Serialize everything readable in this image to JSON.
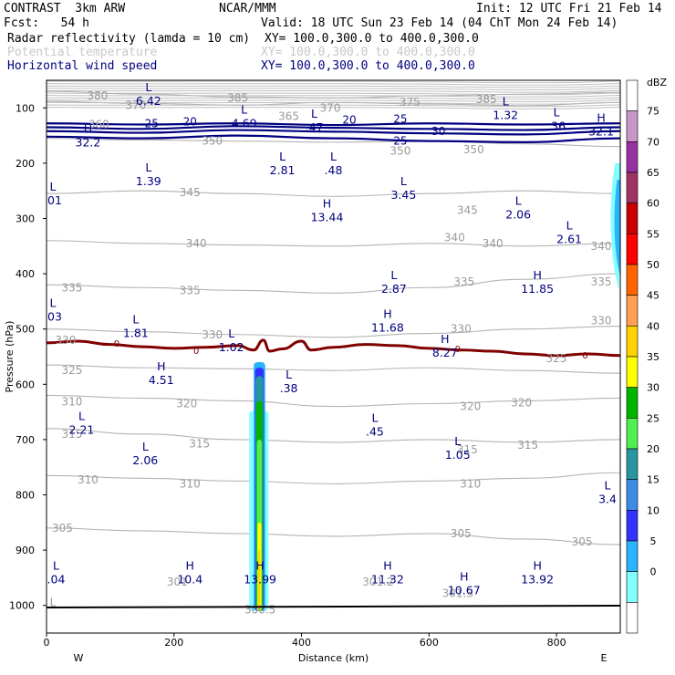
{
  "header": {
    "model": "CONTRAST  3km ARW",
    "center": "NCAR/MMM",
    "init": "Init: 12 UTC Fri 21 Feb 14",
    "fcst": "Fcst:   54 h",
    "valid": "Valid: 18 UTC Sun 23 Feb 14 (04 ChT Mon 24 Feb 14)",
    "field1": "Radar reflectivity (lamda = 10 cm)",
    "field1_xy": "XY= 100.0,300.0 to 400.0,300.0",
    "field2": "Potential temperature",
    "field2_xy": "XY= 100.0,300.0 to 400.0,300.0",
    "field3": "Horizontal wind speed",
    "field3_xy": "XY= 100.0,300.0 to 400.0,300.0"
  },
  "colors": {
    "wind_contour": "#000080",
    "theta_contour": "#b4b4b4",
    "zero_line": "#800000",
    "ground": "#000000"
  },
  "chart_data": {
    "type": "cross-section",
    "xlabel": "Distance (km)",
    "ylabel": "Pressure (hPa)",
    "xlim": [
      0,
      900
    ],
    "ylim": [
      1050,
      50
    ],
    "x_ticks": [
      0,
      200,
      400,
      600,
      800
    ],
    "y_ticks": [
      100,
      200,
      300,
      400,
      500,
      600,
      700,
      800,
      900,
      1000
    ],
    "x_end_labels": {
      "left": "W",
      "right": "E"
    },
    "colorbar": {
      "unit": "dBZ",
      "levels": [
        "75",
        "70",
        "65",
        "60",
        "55",
        "50",
        "45",
        "40",
        "35",
        "30",
        "25",
        "20",
        "15",
        "10",
        "5",
        "0"
      ],
      "colors": [
        "#ffffff",
        "#c896c8",
        "#9632a0",
        "#a03264",
        "#c80000",
        "#ff0000",
        "#ff6400",
        "#ffa050",
        "#ffd200",
        "#ffff00",
        "#00b400",
        "#50f050",
        "#2896a0",
        "#3c8ce6",
        "#3232ff",
        "#28b4ff",
        "#82ffff",
        "#ffffff"
      ]
    },
    "theta_contours": [
      {
        "value": "380",
        "p": [
          70,
          75,
          80,
          82,
          78,
          75,
          72
        ],
        "x": [
          0,
          150,
          300,
          450,
          600,
          750,
          900
        ]
      },
      {
        "value": "370",
        "p": [
          88,
          92,
          95,
          90,
          93,
          96,
          90
        ],
        "x": [
          0,
          150,
          300,
          450,
          600,
          750,
          900
        ]
      },
      {
        "value": "350",
        "p": [
          155,
          158,
          160,
          162,
          160,
          165,
          170
        ],
        "x": [
          0,
          150,
          300,
          450,
          600,
          750,
          900
        ]
      },
      {
        "value": "345",
        "p": [
          255,
          250,
          255,
          260,
          255,
          250,
          255
        ],
        "x": [
          0,
          150,
          300,
          450,
          600,
          750,
          900
        ]
      },
      {
        "value": "340",
        "p": [
          340,
          345,
          348,
          350,
          345,
          350,
          345
        ],
        "x": [
          0,
          150,
          300,
          450,
          600,
          750,
          900
        ]
      },
      {
        "value": "335",
        "p": [
          420,
          425,
          430,
          435,
          425,
          410,
          400
        ],
        "x": [
          0,
          150,
          300,
          450,
          600,
          750,
          900
        ]
      },
      {
        "value": "330",
        "p": [
          500,
          505,
          510,
          515,
          508,
          500,
          495
        ],
        "x": [
          0,
          150,
          300,
          450,
          600,
          750,
          900
        ]
      },
      {
        "value": "325",
        "p": [
          565,
          570,
          572,
          575,
          570,
          575,
          580
        ],
        "x": [
          0,
          150,
          300,
          450,
          600,
          750,
          900
        ]
      },
      {
        "value": "320",
        "p": [
          620,
          625,
          630,
          640,
          635,
          630,
          625
        ],
        "x": [
          0,
          150,
          300,
          450,
          600,
          750,
          900
        ]
      },
      {
        "value": "315",
        "p": [
          680,
          690,
          700,
          705,
          700,
          705,
          700
        ],
        "x": [
          0,
          150,
          300,
          450,
          600,
          750,
          900
        ]
      },
      {
        "value": "310",
        "p": [
          765,
          770,
          775,
          780,
          775,
          770,
          760
        ],
        "x": [
          0,
          150,
          300,
          450,
          600,
          750,
          900
        ]
      },
      {
        "value": "305",
        "p": [
          860,
          865,
          870,
          875,
          870,
          880,
          890
        ],
        "x": [
          0,
          150,
          300,
          450,
          600,
          750,
          900
        ]
      }
    ],
    "theta_labels": [
      {
        "text": "380",
        "x": 80,
        "p": 78
      },
      {
        "text": "370",
        "x": 140,
        "p": 95
      },
      {
        "text": "385",
        "x": 300,
        "p": 82
      },
      {
        "text": "365",
        "x": 380,
        "p": 115
      },
      {
        "text": "370",
        "x": 445,
        "p": 100
      },
      {
        "text": "375",
        "x": 570,
        "p": 90
      },
      {
        "text": "385",
        "x": 690,
        "p": 85
      },
      {
        "text": "360",
        "x": 82,
        "p": 130
      },
      {
        "text": "350",
        "x": 260,
        "p": 160
      },
      {
        "text": "350",
        "x": 555,
        "p": 178
      },
      {
        "text": "350",
        "x": 670,
        "p": 175
      },
      {
        "text": "345",
        "x": 225,
        "p": 253
      },
      {
        "text": "345",
        "x": 660,
        "p": 285
      },
      {
        "text": "340",
        "x": 235,
        "p": 345
      },
      {
        "text": "340",
        "x": 640,
        "p": 335
      },
      {
        "text": "340",
        "x": 700,
        "p": 345
      },
      {
        "text": "340",
        "x": 870,
        "p": 350
      },
      {
        "text": "335",
        "x": 40,
        "p": 425
      },
      {
        "text": "335",
        "x": 225,
        "p": 430
      },
      {
        "text": "335",
        "x": 655,
        "p": 415
      },
      {
        "text": "335",
        "x": 870,
        "p": 415
      },
      {
        "text": "330",
        "x": 260,
        "p": 510
      },
      {
        "text": "330",
        "x": 650,
        "p": 500
      },
      {
        "text": "330",
        "x": 870,
        "p": 485
      },
      {
        "text": "330",
        "x": 30,
        "p": 520
      },
      {
        "text": "325",
        "x": 40,
        "p": 575
      },
      {
        "text": "325",
        "x": 800,
        "p": 553
      },
      {
        "text": "320",
        "x": 220,
        "p": 635
      },
      {
        "text": "320",
        "x": 665,
        "p": 640
      },
      {
        "text": "320",
        "x": 745,
        "p": 633
      },
      {
        "text": "310",
        "x": 40,
        "p": 632
      },
      {
        "text": "315",
        "x": 40,
        "p": 690
      },
      {
        "text": "315",
        "x": 240,
        "p": 708
      },
      {
        "text": "315",
        "x": 660,
        "p": 718
      },
      {
        "text": "315",
        "x": 755,
        "p": 710
      },
      {
        "text": "310",
        "x": 65,
        "p": 773
      },
      {
        "text": "310",
        "x": 225,
        "p": 780
      },
      {
        "text": "310",
        "x": 665,
        "p": 780
      },
      {
        "text": "305",
        "x": 25,
        "p": 860
      },
      {
        "text": "305",
        "x": 650,
        "p": 870
      },
      {
        "text": "305",
        "x": 840,
        "p": 885
      },
      {
        "text": "301",
        "x": 205,
        "p": 958
      },
      {
        "text": "301.2",
        "x": 520,
        "p": 958
      },
      {
        "text": "301.3",
        "x": 645,
        "p": 978
      },
      {
        "text": "300.5",
        "x": 335,
        "p": 1008
      },
      {
        "text": "L",
        "x": 10,
        "p": 995
      }
    ],
    "wind_contours": [
      {
        "value": "20",
        "p": [
          128,
          130,
          128,
          131,
          128,
          130,
          128
        ],
        "x": [
          0,
          150,
          300,
          450,
          600,
          750,
          900
        ]
      },
      {
        "value": "25",
        "p": [
          135,
          138,
          133,
          136,
          138,
          140,
          135
        ],
        "x": [
          0,
          150,
          300,
          450,
          600,
          750,
          900
        ]
      },
      {
        "value": "30",
        "p": [
          142,
          145,
          140,
          143,
          146,
          148,
          142
        ],
        "x": [
          0,
          150,
          300,
          450,
          600,
          750,
          900
        ]
      },
      {
        "value": "25",
        "p": [
          152,
          155,
          150,
          155,
          160,
          162,
          155
        ],
        "x": [
          0,
          150,
          300,
          450,
          600,
          750,
          900
        ]
      }
    ],
    "wind_labels": [
      {
        "text": "25",
        "x": 165,
        "p": 128
      },
      {
        "text": "20",
        "x": 225,
        "p": 125
      },
      {
        "text": "20",
        "x": 475,
        "p": 122
      },
      {
        "text": "25",
        "x": 555,
        "p": 120
      },
      {
        "text": "30",
        "x": 615,
        "p": 142
      },
      {
        "text": "25",
        "x": 555,
        "p": 160
      }
    ],
    "zero_line": {
      "value": "0",
      "x": [
        0,
        50,
        100,
        150,
        200,
        250,
        300,
        325,
        340,
        350,
        370,
        400,
        415,
        450,
        500,
        550,
        600,
        650,
        700,
        750,
        800,
        850,
        900
      ],
      "p": [
        525,
        522,
        528,
        532,
        535,
        533,
        530,
        538,
        520,
        540,
        536,
        522,
        538,
        533,
        528,
        530,
        535,
        538,
        540,
        545,
        548,
        545,
        548
      ],
      "labels": [
        {
          "x": 110,
          "p": 527
        },
        {
          "x": 235,
          "p": 540
        },
        {
          "x": 645,
          "p": 537
        },
        {
          "x": 845,
          "p": 548
        }
      ]
    },
    "extrema": [
      {
        "kind": "L",
        "value": "6.42",
        "x": 160,
        "p": 70
      },
      {
        "kind": "H",
        "value": "32.2",
        "x": 65,
        "p": 145
      },
      {
        "kind": "L",
        "value": "4.69",
        "x": 310,
        "p": 110
      },
      {
        "kind": "L",
        "value": ".47",
        "x": 420,
        "p": 118
      },
      {
        "kind": "L",
        "value": "1.32",
        "x": 720,
        "p": 95
      },
      {
        "kind": "L",
        "value": ".36",
        "x": 800,
        "p": 115
      },
      {
        "kind": "H",
        "value": "32.1",
        "x": 870,
        "p": 125
      },
      {
        "kind": "L",
        "value": "1.39",
        "x": 160,
        "p": 215
      },
      {
        "kind": "L",
        "value": "2.81",
        "x": 370,
        "p": 195
      },
      {
        "kind": "L",
        "value": ".48",
        "x": 450,
        "p": 195
      },
      {
        "kind": "L",
        "value": "3.45",
        "x": 560,
        "p": 240
      },
      {
        "kind": "L",
        "value": ".01",
        "x": 10,
        "p": 250
      },
      {
        "kind": "H",
        "value": "13.44",
        "x": 440,
        "p": 280
      },
      {
        "kind": "L",
        "value": "2.06",
        "x": 740,
        "p": 275
      },
      {
        "kind": "L",
        "value": "2.61",
        "x": 820,
        "p": 320
      },
      {
        "kind": "L",
        "value": "2.87",
        "x": 545,
        "p": 410
      },
      {
        "kind": "H",
        "value": "11.85",
        "x": 770,
        "p": 410
      },
      {
        "kind": "L",
        "value": "1.81",
        "x": 140,
        "p": 490
      },
      {
        "kind": "H",
        "value": "11.68",
        "x": 535,
        "p": 480
      },
      {
        "kind": "L",
        "value": ".03",
        "x": 10,
        "p": 460
      },
      {
        "kind": "L",
        "value": "1.02",
        "x": 290,
        "p": 515
      },
      {
        "kind": "H",
        "value": "8.27",
        "x": 625,
        "p": 525
      },
      {
        "kind": "H",
        "value": "4.51",
        "x": 180,
        "p": 575
      },
      {
        "kind": "L",
        "value": ".38",
        "x": 380,
        "p": 590
      },
      {
        "kind": "L",
        "value": "2.21",
        "x": 55,
        "p": 665
      },
      {
        "kind": "L",
        "value": ".45",
        "x": 515,
        "p": 668
      },
      {
        "kind": "L",
        "value": "2.06",
        "x": 155,
        "p": 720
      },
      {
        "kind": "L",
        "value": "1.05",
        "x": 645,
        "p": 710
      },
      {
        "kind": "L",
        "value": "3.4",
        "x": 880,
        "p": 790
      },
      {
        "kind": "L",
        "value": ".04",
        "x": 15,
        "p": 935
      },
      {
        "kind": "H",
        "value": "10.4",
        "x": 225,
        "p": 935
      },
      {
        "kind": "H",
        "value": "13.99",
        "x": 335,
        "p": 935
      },
      {
        "kind": "H",
        "value": "11.32",
        "x": 535,
        "p": 935
      },
      {
        "kind": "H",
        "value": "10.67",
        "x": 655,
        "p": 955
      },
      {
        "kind": "H",
        "value": "13.92",
        "x": 770,
        "p": 935
      }
    ]
  }
}
